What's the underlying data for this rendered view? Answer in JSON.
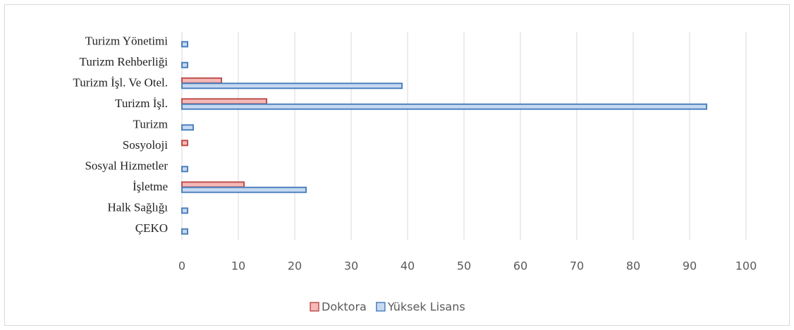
{
  "chart_data": {
    "type": "hbar",
    "categories": [
      "Turizm Yönetimi",
      "Turizm Rehberliği",
      "Turizm İşl. Ve Otel.",
      "Turizm İşl.",
      "Turizm",
      "Sosyoloji",
      "Sosyal Hizmetler",
      "İşletme",
      "Halk Sağlığı",
      "ÇEKO"
    ],
    "series": [
      {
        "name": "Doktora",
        "color": "#f4b9b8",
        "values": [
          0,
          0,
          7,
          15,
          0,
          1,
          0,
          11,
          0,
          0
        ]
      },
      {
        "name": "Yüksek Lisans",
        "color": "#c6d9f1",
        "values": [
          1,
          1,
          39,
          93,
          2,
          0,
          1,
          22,
          1,
          1
        ]
      }
    ],
    "xlim": [
      0,
      100
    ],
    "xticks": [
      0,
      10,
      20,
      30,
      40,
      50,
      60,
      70,
      80,
      90,
      100
    ],
    "grid": true,
    "legend": "bottom"
  }
}
